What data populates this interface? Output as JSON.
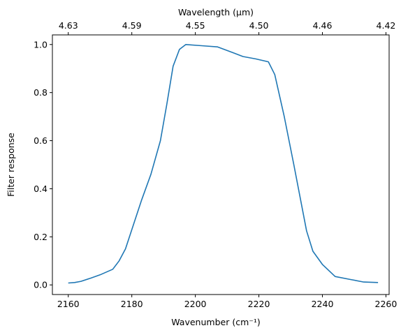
{
  "chart_data": {
    "type": "line",
    "title": "",
    "xlabel_top": "Wavelength (μm)",
    "xlabel": "Wavenumber (cm⁻¹)",
    "ylabel": "Filter response",
    "xlim": [
      2155,
      2261
    ],
    "ylim": [
      -0.04,
      1.04
    ],
    "xticks": [
      2160,
      2180,
      2200,
      2220,
      2240,
      2260
    ],
    "yticks": [
      0.0,
      0.2,
      0.4,
      0.6,
      0.8,
      1.0
    ],
    "ytick_labels": [
      "0.0",
      "0.2",
      "0.4",
      "0.6",
      "0.8",
      "1.0"
    ],
    "top_ticks": [
      {
        "label": "4.63",
        "wavenumber": 2160
      },
      {
        "label": "4.59",
        "wavenumber": 2180
      },
      {
        "label": "4.55",
        "wavenumber": 2200
      },
      {
        "label": "4.50",
        "wavenumber": 2220
      },
      {
        "label": "4.46",
        "wavenumber": 2240
      },
      {
        "label": "4.42",
        "wavenumber": 2260
      }
    ],
    "grid": false,
    "series": [
      {
        "color": "#1f77b4",
        "x": [
          2160,
          2162,
          2164,
          2167,
          2170,
          2174,
          2176,
          2178,
          2180,
          2183,
          2186,
          2189,
          2191,
          2193,
          2195,
          2197,
          2202,
          2207,
          2212,
          2215,
          2219,
          2223,
          2225,
          2228,
          2231,
          2235,
          2237,
          2240,
          2244,
          2249,
          2253,
          2257.5
        ],
        "y": [
          0.008,
          0.01,
          0.015,
          0.028,
          0.042,
          0.065,
          0.1,
          0.15,
          0.23,
          0.35,
          0.46,
          0.6,
          0.75,
          0.91,
          0.98,
          1.0,
          0.995,
          0.99,
          0.965,
          0.95,
          0.94,
          0.928,
          0.875,
          0.7,
          0.5,
          0.225,
          0.14,
          0.085,
          0.035,
          0.022,
          0.012,
          0.01
        ]
      }
    ]
  }
}
